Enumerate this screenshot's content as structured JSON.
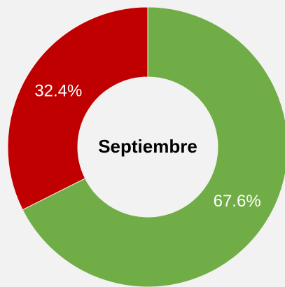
{
  "chart_data": {
    "type": "donut",
    "title": "Septiembre",
    "values": [
      67.6,
      32.4
    ],
    "value_labels": [
      "67.6%",
      "32.4%"
    ],
    "colors": [
      "#70ad47",
      "#c00000"
    ],
    "start_angle": 0,
    "direction": "clockwise"
  }
}
